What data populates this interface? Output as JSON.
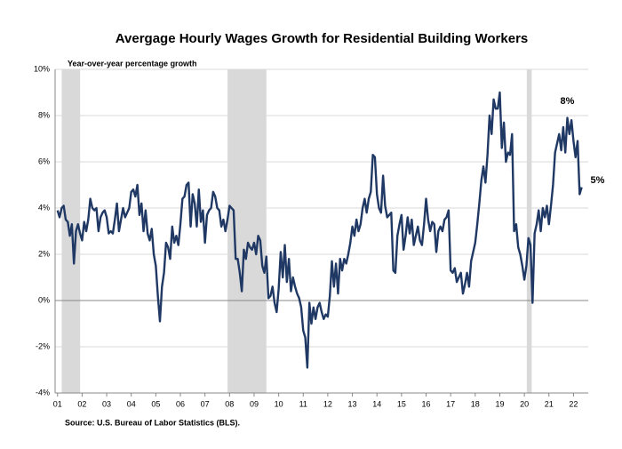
{
  "chart_data": {
    "type": "line",
    "title": "Avergage Hourly Wages Growth for Residential Building Workers",
    "subtitle": "Year-over-year percentage growth",
    "source": "Source: U.S. Bureau of Labor Statistics (BLS).",
    "xlim": [
      2000.9,
      2022.6
    ],
    "xticks": [
      {
        "value": 2001,
        "label": "01"
      },
      {
        "value": 2002,
        "label": "02"
      },
      {
        "value": 2003,
        "label": "03"
      },
      {
        "value": 2004,
        "label": "04"
      },
      {
        "value": 2005,
        "label": "05"
      },
      {
        "value": 2006,
        "label": "06"
      },
      {
        "value": 2007,
        "label": "07"
      },
      {
        "value": 2008,
        "label": "08"
      },
      {
        "value": 2009,
        "label": "09"
      },
      {
        "value": 2010,
        "label": "10"
      },
      {
        "value": 2011,
        "label": "11"
      },
      {
        "value": 2012,
        "label": "12"
      },
      {
        "value": 2013,
        "label": "13"
      },
      {
        "value": 2014,
        "label": "14"
      },
      {
        "value": 2015,
        "label": "15"
      },
      {
        "value": 2016,
        "label": "16"
      },
      {
        "value": 2017,
        "label": "17"
      },
      {
        "value": 2018,
        "label": "18"
      },
      {
        "value": 2019,
        "label": "19"
      },
      {
        "value": 2020,
        "label": "20"
      },
      {
        "value": 2021,
        "label": "21"
      },
      {
        "value": 2022,
        "label": "22"
      }
    ],
    "ylim": [
      -4,
      10
    ],
    "yticks": [
      {
        "value": -4,
        "label": "-4%"
      },
      {
        "value": -2,
        "label": "-2%"
      },
      {
        "value": 0,
        "label": "0%"
      },
      {
        "value": 2,
        "label": "2%"
      },
      {
        "value": 4,
        "label": "4%"
      },
      {
        "value": 6,
        "label": "6%"
      },
      {
        "value": 8,
        "label": "8%"
      },
      {
        "value": 10,
        "label": "10%"
      }
    ],
    "grid": true,
    "shaded_periods": [
      [
        2001.17,
        2001.92
      ],
      [
        2007.92,
        2009.5
      ],
      [
        2020.1,
        2020.3
      ]
    ],
    "shade_color": "#d9d9d9",
    "annotations": [
      {
        "text": "8%",
        "x": 2021.75,
        "y": 8
      },
      {
        "text": "5%",
        "x": 2022.33,
        "y": 5
      }
    ],
    "x": [
      2001,
      2001.083,
      2001.167,
      2001.25,
      2001.333,
      2001.417,
      2001.5,
      2001.583,
      2001.667,
      2001.75,
      2001.833,
      2001.917,
      2002,
      2002.083,
      2002.167,
      2002.25,
      2002.333,
      2002.417,
      2002.5,
      2002.583,
      2002.667,
      2002.75,
      2002.833,
      2002.917,
      2003,
      2003.083,
      2003.167,
      2003.25,
      2003.333,
      2003.417,
      2003.5,
      2003.583,
      2003.667,
      2003.75,
      2003.833,
      2003.917,
      2004,
      2004.083,
      2004.167,
      2004.25,
      2004.333,
      2004.417,
      2004.5,
      2004.583,
      2004.667,
      2004.75,
      2004.833,
      2004.917,
      2005,
      2005.083,
      2005.167,
      2005.25,
      2005.333,
      2005.417,
      2005.5,
      2005.583,
      2005.667,
      2005.75,
      2005.833,
      2005.917,
      2006,
      2006.083,
      2006.167,
      2006.25,
      2006.333,
      2006.417,
      2006.5,
      2006.583,
      2006.667,
      2006.75,
      2006.833,
      2006.917,
      2007,
      2007.083,
      2007.167,
      2007.25,
      2007.333,
      2007.417,
      2007.5,
      2007.583,
      2007.667,
      2007.75,
      2007.833,
      2007.917,
      2008,
      2008.083,
      2008.167,
      2008.25,
      2008.333,
      2008.417,
      2008.5,
      2008.583,
      2008.667,
      2008.75,
      2008.833,
      2008.917,
      2009,
      2009.083,
      2009.167,
      2009.25,
      2009.333,
      2009.417,
      2009.5,
      2009.583,
      2009.667,
      2009.75,
      2009.833,
      2009.917,
      2010,
      2010.083,
      2010.167,
      2010.25,
      2010.333,
      2010.417,
      2010.5,
      2010.583,
      2010.667,
      2010.75,
      2010.833,
      2010.917,
      2011,
      2011.083,
      2011.167,
      2011.25,
      2011.333,
      2011.417,
      2011.5,
      2011.583,
      2011.667,
      2011.75,
      2011.833,
      2011.917,
      2012,
      2012.083,
      2012.167,
      2012.25,
      2012.333,
      2012.417,
      2012.5,
      2012.583,
      2012.667,
      2012.75,
      2012.833,
      2012.917,
      2013,
      2013.083,
      2013.167,
      2013.25,
      2013.333,
      2013.417,
      2013.5,
      2013.583,
      2013.667,
      2013.75,
      2013.833,
      2013.917,
      2014,
      2014.083,
      2014.167,
      2014.25,
      2014.333,
      2014.417,
      2014.5,
      2014.583,
      2014.667,
      2014.75,
      2014.833,
      2014.917,
      2015,
      2015.083,
      2015.167,
      2015.25,
      2015.333,
      2015.417,
      2015.5,
      2015.583,
      2015.667,
      2015.75,
      2015.833,
      2015.917,
      2016,
      2016.083,
      2016.167,
      2016.25,
      2016.333,
      2016.417,
      2016.5,
      2016.583,
      2016.667,
      2016.75,
      2016.833,
      2016.917,
      2017,
      2017.083,
      2017.167,
      2017.25,
      2017.333,
      2017.417,
      2017.5,
      2017.583,
      2017.667,
      2017.75,
      2017.833,
      2017.917,
      2018,
      2018.083,
      2018.167,
      2018.25,
      2018.333,
      2018.417,
      2018.5,
      2018.583,
      2018.667,
      2018.75,
      2018.833,
      2018.917,
      2019,
      2019.083,
      2019.167,
      2019.25,
      2019.333,
      2019.417,
      2019.5,
      2019.583,
      2019.667,
      2019.75,
      2019.833,
      2019.917,
      2020,
      2020.083,
      2020.167,
      2020.25,
      2020.333,
      2020.417,
      2020.5,
      2020.583,
      2020.667,
      2020.75,
      2020.833,
      2020.917,
      2021,
      2021.083,
      2021.167,
      2021.25,
      2021.333,
      2021.417,
      2021.5,
      2021.583,
      2021.667,
      2021.75,
      2021.833,
      2021.917,
      2022,
      2022.083,
      2022.167,
      2022.25,
      2022.333
    ],
    "series": [
      {
        "color": "#1f3864",
        "values": [
          3.9,
          3.6,
          4.0,
          4.1,
          3.5,
          3.4,
          2.8,
          3.3,
          1.6,
          3.0,
          3.3,
          2.9,
          2.6,
          3.4,
          3.0,
          3.5,
          4.4,
          4.0,
          3.9,
          4.0,
          3.0,
          3.6,
          3.8,
          3.9,
          3.6,
          2.9,
          3.0,
          2.9,
          3.5,
          4.2,
          3.0,
          3.5,
          4.0,
          3.6,
          3.8,
          4.0,
          4.7,
          4.8,
          4.5,
          5.0,
          3.7,
          4.2,
          3.0,
          3.9,
          2.9,
          2.6,
          3.1,
          2.0,
          1.5,
          0.2,
          -0.9,
          0.6,
          1.2,
          2.5,
          2.3,
          1.8,
          3.2,
          2.5,
          2.8,
          2.4,
          3.3,
          4.4,
          4.5,
          5.0,
          5.1,
          3.2,
          4.6,
          4.2,
          3.2,
          4.8,
          3.4,
          3.9,
          2.5,
          3.7,
          3.9,
          4.0,
          4.7,
          4.5,
          4.0,
          3.9,
          3.2,
          3.5,
          3.0,
          3.5,
          4.1,
          4.0,
          3.9,
          1.8,
          1.8,
          1.2,
          0.4,
          2.2,
          1.8,
          2.5,
          2.3,
          2.2,
          2.5,
          2.0,
          2.8,
          2.6,
          1.5,
          1.2,
          1.9,
          0.1,
          0.2,
          0.6,
          -0.1,
          -0.5,
          0.5,
          2.1,
          1.0,
          2.4,
          0.8,
          1.8,
          0.4,
          1.0,
          0.6,
          0.3,
          0.1,
          -0.3,
          -1.3,
          -1.6,
          -2.9,
          -0.1,
          -1.0,
          -0.3,
          -0.8,
          -0.3,
          -0.1,
          -0.5,
          -0.8,
          -0.6,
          -0.7,
          0.2,
          1.7,
          0.6,
          1.6,
          0.3,
          1.8,
          1.3,
          1.8,
          1.6,
          2.0,
          2.5,
          3.2,
          2.8,
          3.5,
          3.0,
          3.3,
          4.0,
          4.4,
          3.8,
          4.4,
          4.7,
          6.3,
          6.2,
          4.6,
          4.0,
          3.8,
          5.4,
          4.1,
          3.6,
          3.7,
          3.8,
          1.3,
          1.2,
          2.8,
          3.3,
          3.7,
          2.2,
          2.8,
          3.6,
          2.9,
          3.5,
          2.4,
          2.8,
          3.2,
          2.6,
          2.4,
          3.3,
          4.4,
          3.5,
          3.0,
          3.4,
          3.3,
          2.1,
          3.0,
          3.2,
          3.0,
          3.5,
          3.6,
          3.9,
          1.3,
          1.2,
          1.4,
          0.8,
          1.0,
          1.2,
          0.3,
          0.7,
          1.2,
          0.6,
          1.7,
          2.1,
          2.5,
          3.3,
          4.2,
          5.2,
          5.8,
          5.1,
          6.3,
          8.0,
          7.2,
          8.7,
          8.3,
          8.3,
          9.0,
          6.6,
          7.7,
          6.0,
          6.4,
          6.3,
          7.2,
          3.0,
          3.3,
          2.3,
          2.0,
          1.5,
          0.9,
          1.5,
          2.7,
          2.4,
          -0.1,
          2.9,
          3.3,
          3.9,
          3.0,
          4.0,
          3.6,
          4.1,
          3.3,
          4.1,
          5.0,
          6.4,
          6.8,
          7.2,
          6.5,
          7.5,
          6.4,
          7.9,
          7.2,
          7.8,
          6.9,
          6.2,
          6.9,
          4.6,
          4.9
        ]
      }
    ]
  }
}
